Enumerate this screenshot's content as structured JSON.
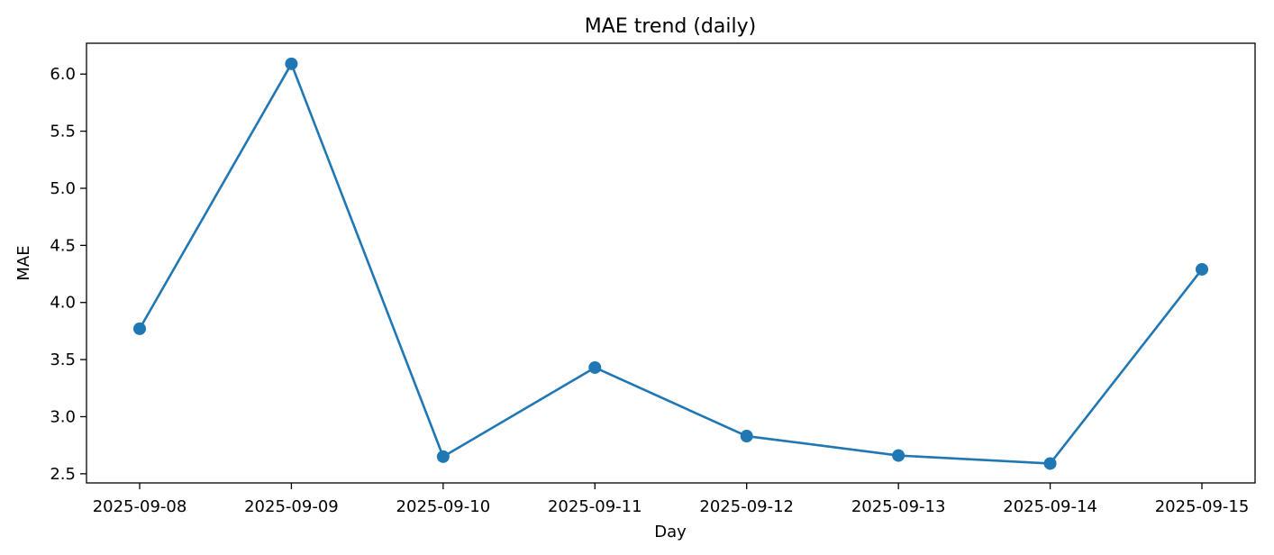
{
  "chart_data": {
    "type": "line",
    "title": "MAE trend (daily)",
    "xlabel": "Day",
    "ylabel": "MAE",
    "x": [
      "2025-09-08",
      "2025-09-09",
      "2025-09-10",
      "2025-09-11",
      "2025-09-12",
      "2025-09-13",
      "2025-09-14",
      "2025-09-15"
    ],
    "series": [
      {
        "values": [
          3.77,
          6.09,
          2.65,
          3.43,
          2.83,
          2.66,
          2.59,
          4.29
        ],
        "color": "#1f77b4",
        "marker": "circle"
      }
    ],
    "ylim": [
      2.42,
      6.27
    ],
    "yticks": [
      "2.5",
      "3.0",
      "3.5",
      "4.0",
      "4.5",
      "5.0",
      "5.5",
      "6.0"
    ],
    "grid": false,
    "legend": "none"
  }
}
